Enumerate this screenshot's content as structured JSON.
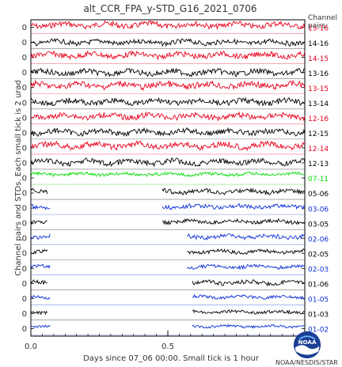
{
  "chart_data": {
    "type": "line",
    "title": "alt_CCR_FPA_y-STD_G16_2021_0706",
    "xlabel": "Days since 07_06 00:00. Small tick is 1 hour",
    "ylabel": "Channel pairs and STDs. Each small tick is 2 urad",
    "legend_title": "Channel\npairs:",
    "xlim": [
      0.0,
      1.0
    ],
    "x_ticks": [
      "0.0",
      "0.5"
    ],
    "y_tick_label": "0",
    "series": [
      {
        "name": "15-16",
        "color": "#e8001c",
        "coverage": [
          [
            0.0,
            1.0
          ]
        ],
        "level": 0.35,
        "amp": 0.9
      },
      {
        "name": "14-16",
        "color": "#000000",
        "coverage": [
          [
            0.0,
            1.0
          ]
        ],
        "level": 0.5,
        "amp": 0.8
      },
      {
        "name": "14-15",
        "color": "#e8001c",
        "coverage": [
          [
            0.0,
            1.0
          ]
        ],
        "level": 0.35,
        "amp": 0.9
      },
      {
        "name": "13-16",
        "color": "#000000",
        "coverage": [
          [
            0.0,
            1.0
          ]
        ],
        "level": 0.5,
        "amp": 0.9
      },
      {
        "name": "13-15",
        "color": "#e8001c",
        "coverage": [
          [
            0.0,
            1.0
          ]
        ],
        "level": 0.35,
        "amp": 1.0
      },
      {
        "name": "13-14",
        "color": "#000000",
        "coverage": [
          [
            0.0,
            1.0
          ]
        ],
        "level": 0.45,
        "amp": 0.9
      },
      {
        "name": "12-16",
        "color": "#e8001c",
        "coverage": [
          [
            0.0,
            1.0
          ]
        ],
        "level": 0.4,
        "amp": 0.9
      },
      {
        "name": "12-15",
        "color": "#000000",
        "coverage": [
          [
            0.0,
            1.0
          ]
        ],
        "level": 0.45,
        "amp": 0.9
      },
      {
        "name": "12-14",
        "color": "#e8001c",
        "coverage": [
          [
            0.0,
            1.0
          ]
        ],
        "level": 0.35,
        "amp": 1.0
      },
      {
        "name": "12-13",
        "color": "#000000",
        "coverage": [
          [
            0.0,
            1.0
          ]
        ],
        "level": 0.45,
        "amp": 0.9
      },
      {
        "name": "07-11",
        "color": "#00dd00",
        "coverage": [
          [
            0.0,
            1.0
          ]
        ],
        "level": 0.25,
        "amp": 0.5
      },
      {
        "name": "05-06",
        "color": "#000000",
        "coverage": [
          [
            0.0,
            0.06
          ],
          [
            0.48,
            1.0
          ]
        ],
        "level": 0.4,
        "amp": 0.7
      },
      {
        "name": "03-06",
        "color": "#0a2fd6",
        "coverage": [
          [
            0.0,
            0.07
          ],
          [
            0.48,
            1.0
          ]
        ],
        "level": 0.4,
        "amp": 0.7
      },
      {
        "name": "03-05",
        "color": "#000000",
        "coverage": [
          [
            0.0,
            0.06
          ],
          [
            0.48,
            1.0
          ]
        ],
        "level": 0.4,
        "amp": 0.6
      },
      {
        "name": "02-06",
        "color": "#0a2fd6",
        "coverage": [
          [
            0.0,
            0.07
          ],
          [
            0.57,
            1.0
          ]
        ],
        "level": 0.4,
        "amp": 0.7
      },
      {
        "name": "02-05",
        "color": "#000000",
        "coverage": [
          [
            0.0,
            0.06
          ],
          [
            0.57,
            1.0
          ]
        ],
        "level": 0.4,
        "amp": 0.6
      },
      {
        "name": "02-03",
        "color": "#0a2fd6",
        "coverage": [
          [
            0.0,
            0.07
          ],
          [
            0.57,
            1.0
          ]
        ],
        "level": 0.4,
        "amp": 0.6
      },
      {
        "name": "01-06",
        "color": "#000000",
        "coverage": [
          [
            0.0,
            0.06
          ],
          [
            0.59,
            1.0
          ]
        ],
        "level": 0.45,
        "amp": 0.7
      },
      {
        "name": "01-05",
        "color": "#0a2fd6",
        "coverage": [
          [
            0.0,
            0.07
          ],
          [
            0.59,
            1.0
          ]
        ],
        "level": 0.4,
        "amp": 0.5
      },
      {
        "name": "01-03",
        "color": "#000000",
        "coverage": [
          [
            0.0,
            0.06
          ],
          [
            0.59,
            1.0
          ]
        ],
        "level": 0.4,
        "amp": 0.5
      },
      {
        "name": "01-02",
        "color": "#0a2fd6",
        "coverage": [
          [
            0.0,
            0.07
          ],
          [
            0.59,
            1.0
          ]
        ],
        "level": 0.35,
        "amp": 0.4
      }
    ],
    "grid": false
  },
  "footer": {
    "logo_text": "NOAA",
    "credit": "NOAA/NESDIS/STAR"
  }
}
